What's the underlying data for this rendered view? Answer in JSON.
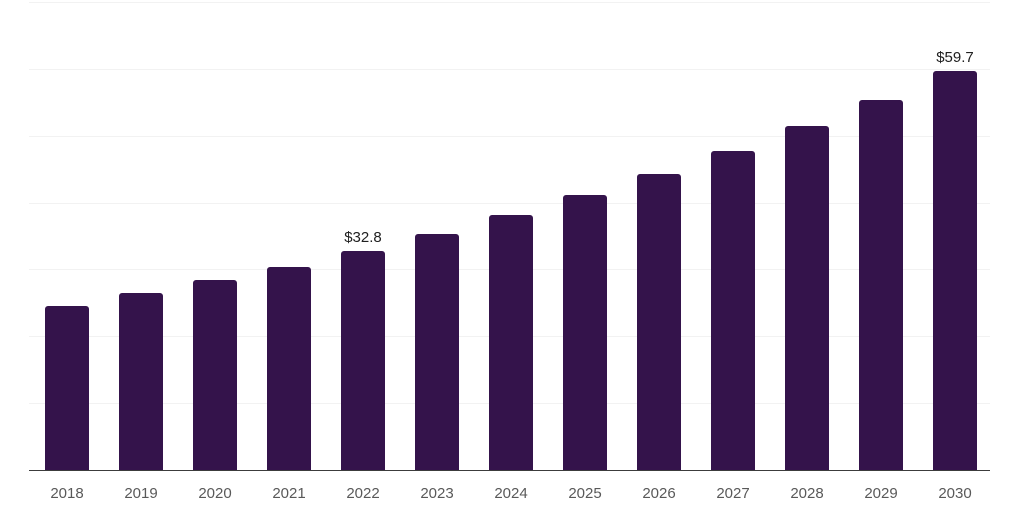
{
  "chart_data": {
    "type": "bar",
    "title": "",
    "xlabel": "",
    "ylabel": "",
    "categories": [
      "2018",
      "2019",
      "2020",
      "2021",
      "2022",
      "2023",
      "2024",
      "2025",
      "2026",
      "2027",
      "2028",
      "2029",
      "2030"
    ],
    "values": [
      24.6,
      26.4,
      28.4,
      30.4,
      32.8,
      35.3,
      38.1,
      41.1,
      44.3,
      47.7,
      51.4,
      55.4,
      59.7
    ],
    "data_labels": [
      {
        "index": 4,
        "text": "$32.8"
      },
      {
        "index": 12,
        "text": "$59.7"
      }
    ],
    "ylim": [
      0,
      70
    ],
    "gridline_step": 10,
    "grid": "horizontal",
    "legend": "none",
    "colors": {
      "bar": "#34134B",
      "gridline": "#f2f2f2",
      "axis_line": "#3c3c3c",
      "tick_label": "#595959",
      "data_label": "#202020",
      "background": "#ffffff"
    }
  }
}
